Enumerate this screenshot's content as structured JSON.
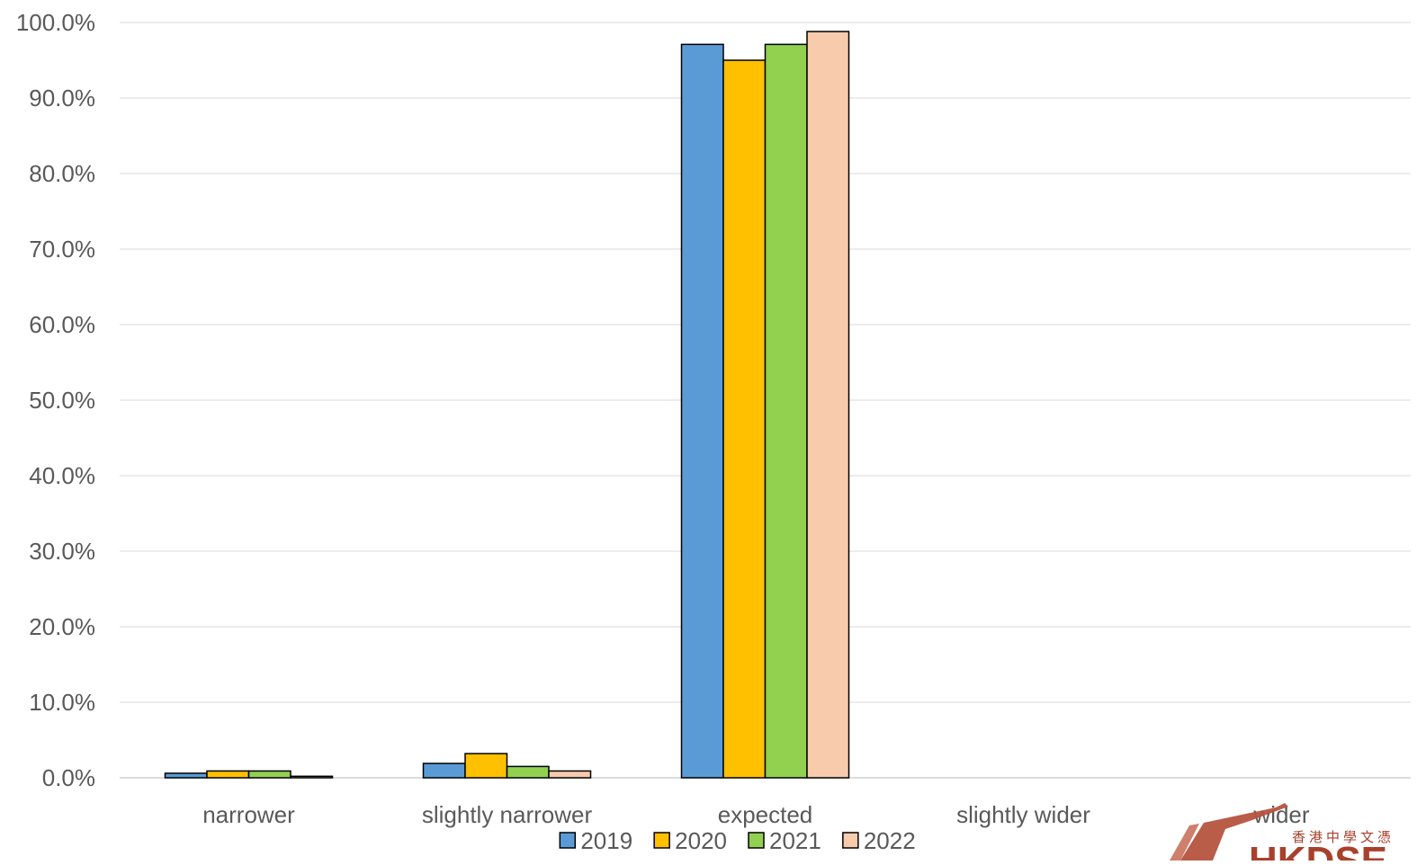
{
  "chart_data": {
    "type": "bar",
    "categories": [
      "narrower",
      "slightly narrower",
      "expected",
      "slightly wider",
      "wider"
    ],
    "series": [
      {
        "name": "2019",
        "color": "#5b9bd5",
        "values": [
          0.6,
          1.9,
          97.1,
          0.0,
          0.0
        ]
      },
      {
        "name": "2020",
        "color": "#ffc000",
        "values": [
          0.9,
          3.2,
          95.0,
          0.0,
          0.0
        ]
      },
      {
        "name": "2021",
        "color": "#92d050",
        "values": [
          0.9,
          1.5,
          97.1,
          0.0,
          0.0
        ]
      },
      {
        "name": "2022",
        "color": "#f8cbad",
        "values": [
          0.2,
          0.9,
          98.8,
          0.0,
          0.0
        ]
      }
    ],
    "ylim": [
      0,
      100
    ],
    "yticks": [
      "0.0%",
      "10.0%",
      "20.0%",
      "30.0%",
      "40.0%",
      "50.0%",
      "60.0%",
      "70.0%",
      "80.0%",
      "90.0%",
      "100.0%"
    ],
    "grid": true,
    "legend_position": "bottom",
    "title": "",
    "xlabel": "",
    "ylabel": ""
  },
  "watermark": {
    "text": "香港中學文憑",
    "logo_text": "HKDSE",
    "color": "#a8412c"
  }
}
